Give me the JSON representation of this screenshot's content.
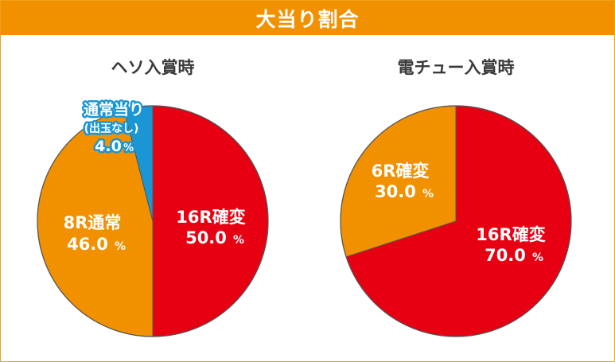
{
  "header": {
    "title": "大当り割合"
  },
  "chart_data": [
    {
      "type": "pie",
      "title": "ヘソ入賞時",
      "slices": [
        {
          "label": "16R確変",
          "value": 50.0,
          "display": "50.0",
          "unit": "%",
          "color": "#e60012"
        },
        {
          "label": "8R通常",
          "value": 46.0,
          "display": "46.0",
          "unit": "%",
          "color": "#f29100"
        },
        {
          "label": "通常当り",
          "sublabel": "(出玉なし)",
          "value": 4.0,
          "display": "4.0",
          "unit": "%",
          "color": "#1a96d4"
        }
      ]
    },
    {
      "type": "pie",
      "title": "電チュー入賞時",
      "slices": [
        {
          "label": "16R確変",
          "value": 70.0,
          "display": "70.0",
          "unit": "%",
          "color": "#e60012"
        },
        {
          "label": "6R確変",
          "value": 30.0,
          "display": "30.0",
          "unit": "%",
          "color": "#f29100"
        }
      ]
    }
  ]
}
